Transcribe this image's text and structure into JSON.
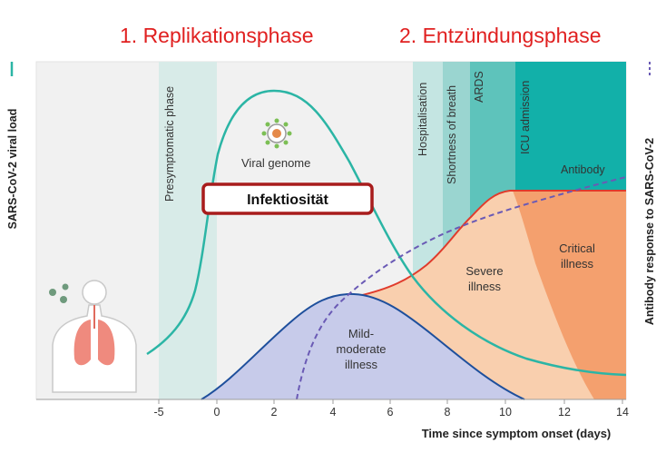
{
  "phases": {
    "phase1": "1. Replikationsphase",
    "phase2": "2. Entzündungsphase"
  },
  "axes": {
    "left_title": "SARS-CoV-2 viral load",
    "right_title": "Antibody response to SARS-CoV-2",
    "x_title": "Time since symptom onset (days)",
    "x_ticks": [
      "-5",
      "0",
      "2",
      "4",
      "6",
      "8",
      "10",
      "12",
      "14"
    ]
  },
  "bands": {
    "presymptomatic": "Presymptomatic phase",
    "hospitalisation": "Hospitalisation",
    "shortness_of_breath": "Shortness of breath",
    "ards": "ARDS",
    "icu": "ICU admission"
  },
  "labels": {
    "viral_genome": "Viral genome",
    "infectivity": "Infektiosität",
    "antibody": "Antibody",
    "severe_1": "Severe",
    "severe_2": "illness",
    "critical_1": "Critical",
    "critical_2": "illness",
    "mild_1": "Mild-",
    "mild_2": "moderate",
    "mild_3": "illness"
  },
  "colors": {
    "viral_load": "#2bb5a5",
    "antibody": "#6a5ab5",
    "severe_line": "#e03b2c",
    "mild_fill": "#c7cbea",
    "mild_line": "#1e4f9c",
    "severe_fill": "#f9cfae",
    "critical_fill": "#f4a06e",
    "band_light": "#d5ecea",
    "band_teal": "#11b0a8",
    "infectivity_box": "#a81c1c"
  }
}
